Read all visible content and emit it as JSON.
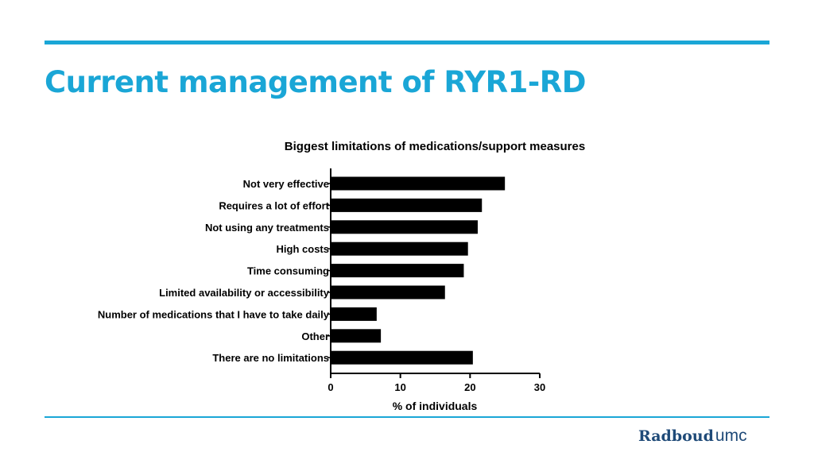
{
  "slide": {
    "title": "Current management of RYR1-RD",
    "logo_main": "Radboud",
    "logo_sub": "umc"
  },
  "colors": {
    "accent": "#1aa6d6",
    "bar": "#000000",
    "logo": "#1f4a78"
  },
  "chart_data": {
    "type": "bar",
    "orientation": "horizontal",
    "title": "Biggest limitations of medications/support measures",
    "xlabel": "% of individuals",
    "ylabel": "",
    "xlim": [
      0,
      30
    ],
    "xticks": [
      0,
      10,
      20,
      30
    ],
    "grid": false,
    "categories": [
      "Not very effective",
      "Requires a lot of effort",
      "Not using any treatments",
      "High costs",
      "Time consuming",
      "Limited availability or accessibility",
      "Number of medications that I have to take daily",
      "Other",
      "There are no limitations"
    ],
    "values": [
      25.0,
      21.7,
      21.1,
      19.7,
      19.1,
      16.4,
      6.6,
      7.2,
      20.4
    ]
  }
}
